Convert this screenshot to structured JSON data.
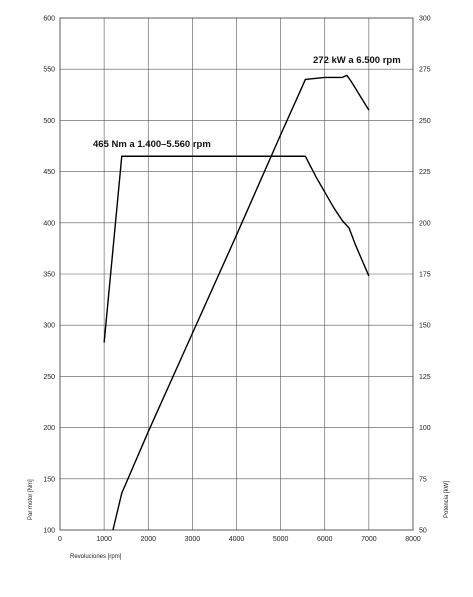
{
  "chart_data": {
    "type": "line",
    "title": "",
    "xlabel": "Revoluciones [rpm]",
    "ylabel_left": "Par motor [Nm]",
    "ylabel_right": "Potencia [kW]",
    "xlim": [
      0,
      8000
    ],
    "ylim_left": [
      100,
      600
    ],
    "ylim_right": [
      50,
      300
    ],
    "x_ticks": [
      "0",
      "1000",
      "2000",
      "3000",
      "4000",
      "5000",
      "6000",
      "7000",
      "8000"
    ],
    "y_ticks_left": [
      "100",
      "150",
      "200",
      "250",
      "300",
      "350",
      "400",
      "450",
      "500",
      "550",
      "600"
    ],
    "y_ticks_right": [
      "50",
      "75",
      "100",
      "125",
      "150",
      "175",
      "200",
      "225",
      "250",
      "275",
      "300"
    ],
    "grid": true,
    "series": [
      {
        "axis": "left",
        "x": [
          1000,
          1400,
          5560,
          5800,
          6000,
          6200,
          6400,
          6550,
          6700,
          7000
        ],
        "y": [
          283,
          465,
          465,
          445,
          430,
          415,
          402,
          395,
          378,
          348
        ]
      },
      {
        "axis": "right",
        "x": [
          1200,
          1400,
          2000,
          3000,
          4000,
          5000,
          5500,
          5560,
          6000,
          6400,
          6500,
          6600,
          7000
        ],
        "y": [
          50,
          68,
          98,
          146,
          194,
          243,
          267,
          270,
          271,
          271,
          272,
          269,
          255
        ]
      }
    ],
    "annotations": [
      {
        "id": "torque",
        "text": "465 Nm a 1.400–5.560 rpm"
      },
      {
        "id": "power",
        "text": "272 kW a 6.500 rpm"
      }
    ]
  }
}
